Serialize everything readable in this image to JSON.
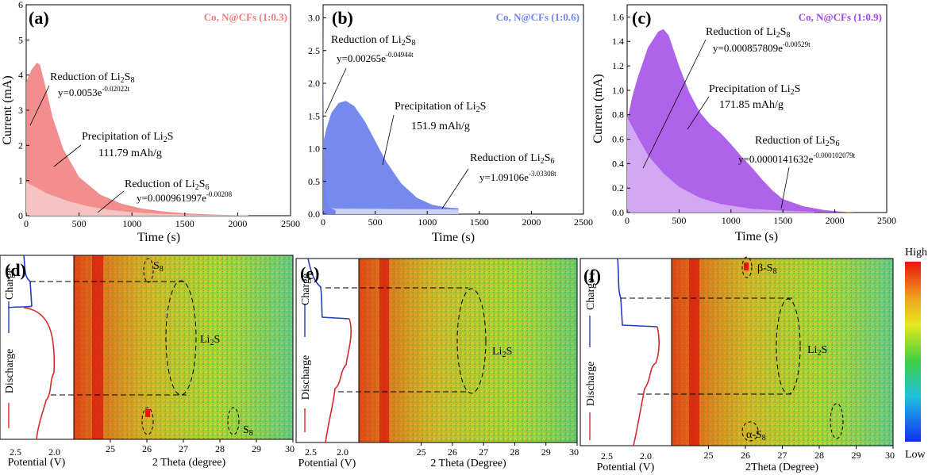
{
  "colors": {
    "a_dark": "#f07a7a",
    "a_light": "#f6c2c2",
    "b_dark": "#6f84ec",
    "b_light": "#c9d2f6",
    "c_dark": "#a148e6",
    "c_light": "#d3a8f3",
    "charge_line": "#1f3fbf",
    "discharge_line": "#d82a2a"
  },
  "chart_data": [
    {
      "id": "a",
      "type": "area",
      "panel_label": "(a)",
      "title": "Co, N@CFs (1:0.3)",
      "xlabel": "Time (s)",
      "ylabel": "Current (mA)",
      "xlim": [
        0,
        2500
      ],
      "ylim": [
        0,
        6
      ],
      "xticks": [
        "0",
        "500",
        "1000",
        "1500",
        "2000",
        "2500"
      ],
      "yticks": [
        "0",
        "1",
        "2",
        "3",
        "4",
        "5",
        "6"
      ],
      "series": [
        {
          "name": "Reduction of Li2S6 (exponential)",
          "x": [
            0,
            50,
            100,
            200,
            400,
            600,
            800,
            1000,
            1300,
            1700,
            2100
          ],
          "values": [
            0.95,
            0.87,
            0.79,
            0.63,
            0.41,
            0.26,
            0.16,
            0.1,
            0.05,
            0.02,
            0.01
          ]
        },
        {
          "name": "Total current",
          "x": [
            0,
            20,
            50,
            100,
            130,
            180,
            250,
            350,
            500,
            700,
            900,
            1100,
            1300,
            1500,
            1700,
            1900,
            2100
          ],
          "values": [
            3.8,
            3.95,
            4.15,
            4.35,
            4.3,
            3.7,
            2.8,
            1.9,
            1.1,
            0.6,
            0.34,
            0.2,
            0.12,
            0.07,
            0.04,
            0.02,
            0.01
          ]
        }
      ],
      "annotations": {
        "li2s8_prefix": "Reduction of Li",
        "li2s8_sub": "2",
        "li2s8_mid": "S",
        "li2s8_sub2": "8",
        "li2s8_eq": "y=0.0053e",
        "li2s8_exp": "-0.02022t",
        "li2s_prefix": "Precipitation of Li",
        "li2s_sub": "2",
        "li2s_mid": "S",
        "capacity": "111.79 mAh/g",
        "li2s6_prefix": "Reduction of Li",
        "li2s6_sub": "2",
        "li2s6_mid": "S",
        "li2s6_sub2": "6",
        "li2s6_eq": "y=0.000961997e",
        "li2s6_exp": "-0.00208"
      }
    },
    {
      "id": "b",
      "type": "area",
      "panel_label": "(b)",
      "title": "Co, N@CFs (1:0.6)",
      "xlabel": "Time (s)",
      "ylabel": "",
      "xlim": [
        0,
        2500
      ],
      "ylim": [
        0,
        3.2
      ],
      "xticks": [
        "0",
        "500",
        "1000",
        "1500",
        "2000",
        "2500"
      ],
      "yticks": [
        "0.0",
        "0.5",
        "1.0",
        "1.5",
        "2.0",
        "2.5",
        "3.0"
      ],
      "series": [
        {
          "name": "Reduction of Li2S8 spike",
          "x": [
            0,
            3,
            8,
            15,
            30,
            60,
            120
          ],
          "values": [
            3.1,
            2.2,
            1.2,
            0.6,
            0.25,
            0.1,
            0.06
          ]
        },
        {
          "name": "Reduction of Li2S6 (baseline)",
          "x": [
            0,
            200,
            600,
            1000,
            1300
          ],
          "values": [
            0.09,
            0.085,
            0.08,
            0.075,
            0.07
          ]
        },
        {
          "name": "Total current",
          "x": [
            0,
            30,
            80,
            150,
            220,
            300,
            400,
            500,
            600,
            750,
            900,
            1050,
            1200,
            1300
          ],
          "values": [
            1.08,
            1.3,
            1.55,
            1.7,
            1.73,
            1.65,
            1.42,
            1.12,
            0.82,
            0.47,
            0.25,
            0.14,
            0.1,
            0.09
          ]
        }
      ],
      "annotations": {
        "li2s8_prefix": "Reduction of Li",
        "li2s8_sub": "2",
        "li2s8_mid": "S",
        "li2s8_sub2": "8",
        "li2s8_eq": "y=0.00265e",
        "li2s8_exp": "-0.04944t",
        "li2s_prefix": "Precipitation of Li",
        "li2s_sub": "2",
        "li2s_mid": "S",
        "capacity": "151.9 mAh/g",
        "li2s6_prefix": "Reduction of Li",
        "li2s6_sub": "2",
        "li2s6_mid": "S",
        "li2s6_sub2": "6",
        "li2s6_eq": "y=1.09106e",
        "li2s6_exp": "-3.03308t"
      }
    },
    {
      "id": "c",
      "type": "area",
      "panel_label": "(c)",
      "title": "Co, N@CFs (1:0.9)",
      "xlabel": "Time (s)",
      "ylabel": "Current (mA)",
      "xlim": [
        0,
        2500
      ],
      "ylim": [
        0,
        1.7
      ],
      "xticks": [
        "0",
        "500",
        "1000",
        "1500",
        "2000",
        "2500"
      ],
      "yticks": [
        "0.0",
        "0.2",
        "0.4",
        "0.6",
        "0.8",
        "1.0",
        "1.2",
        "1.4",
        "1.6"
      ],
      "series": [
        {
          "name": "Reduction of Li2S8 (exponential)",
          "x": [
            0,
            100,
            200,
            350,
            500,
            700,
            900,
            1200,
            1500,
            1800
          ],
          "values": [
            0.78,
            0.62,
            0.47,
            0.32,
            0.21,
            0.12,
            0.07,
            0.03,
            0.015,
            0.005
          ]
        },
        {
          "name": "Total current",
          "x": [
            0,
            50,
            100,
            200,
            300,
            350,
            400,
            500,
            600,
            700,
            800,
            900,
            1000,
            1100,
            1200,
            1300,
            1400,
            1500,
            1700,
            1900,
            2100,
            2200
          ],
          "values": [
            0.75,
            0.95,
            1.1,
            1.35,
            1.48,
            1.5,
            1.45,
            1.2,
            0.98,
            0.82,
            0.72,
            0.65,
            0.56,
            0.46,
            0.37,
            0.27,
            0.18,
            0.11,
            0.05,
            0.02,
            0.005,
            0.0
          ]
        }
      ],
      "annotations": {
        "li2s8_prefix": "Reduction of Li",
        "li2s8_sub": "2",
        "li2s8_mid": "S",
        "li2s8_sub2": "8",
        "li2s8_eq": "y=0.000857809e",
        "li2s8_exp": "-0.00529t",
        "li2s_prefix": "Precipitation of Li",
        "li2s_sub": "2",
        "li2s_mid": "S",
        "capacity": "171.85 mAh/g",
        "li2s6_prefix": "Reduction of Li",
        "li2s6_sub": "2",
        "li2s6_mid": "S",
        "li2s6_sub2": "6",
        "li2s6_eq": "y=0.0000141632e",
        "li2s6_exp": "-0.000102079t"
      }
    },
    {
      "id": "d",
      "type": "heatmap",
      "panel_label": "(d)",
      "xlabel": "2 Theta (degree)",
      "potential_label": "Potential (V)",
      "xlim": [
        24,
        30
      ],
      "xticks": [
        "25",
        "26",
        "27",
        "28",
        "29",
        "30"
      ],
      "potential_ticks": [
        "2.5",
        "2.0"
      ],
      "side_labels": {
        "charge": "Charge",
        "discharge": "Discharge"
      },
      "peaks": {
        "s8_top": "S",
        "s8_top_sub": "8",
        "li2s": "Li",
        "li2s_sub": "2",
        "li2s_s": "S",
        "s8_bottom": "S",
        "s8_bottom_sub": "8"
      },
      "colorbar": {
        "high": "High",
        "low": "Low"
      }
    },
    {
      "id": "e",
      "type": "heatmap",
      "panel_label": "(e)",
      "xlabel": "2 Theta (Degree)",
      "potential_label": "Potential (V)",
      "xlim": [
        23,
        30
      ],
      "xticks": [
        "25",
        "26",
        "27",
        "28",
        "29",
        "30"
      ],
      "potential_ticks": [
        "2.5",
        "2.0"
      ],
      "side_labels": {
        "charge": "Charge",
        "discharge": "Discharge"
      },
      "peaks": {
        "li2s": "Li",
        "li2s_sub": "2",
        "li2s_s": "S"
      }
    },
    {
      "id": "f",
      "type": "heatmap",
      "panel_label": "(f)",
      "xlabel": "2Theta (Degree)",
      "potential_label": "Potential (V)",
      "xlim": [
        24,
        30
      ],
      "xticks": [
        "25",
        "26",
        "27",
        "28",
        "29",
        "30"
      ],
      "potential_ticks": [
        "2.5",
        "2.0"
      ],
      "side_labels": {
        "charge": "Charge",
        "discharge": "Discharge"
      },
      "peaks": {
        "beta_s8": "β-S",
        "beta_s8_sub": "8",
        "li2s": "Li",
        "li2s_sub": "2",
        "li2s_s": "S",
        "alpha_s8": "α-S",
        "alpha_s8_sub": "8"
      },
      "colorbar": {
        "high": "High",
        "low": "Low"
      }
    }
  ]
}
